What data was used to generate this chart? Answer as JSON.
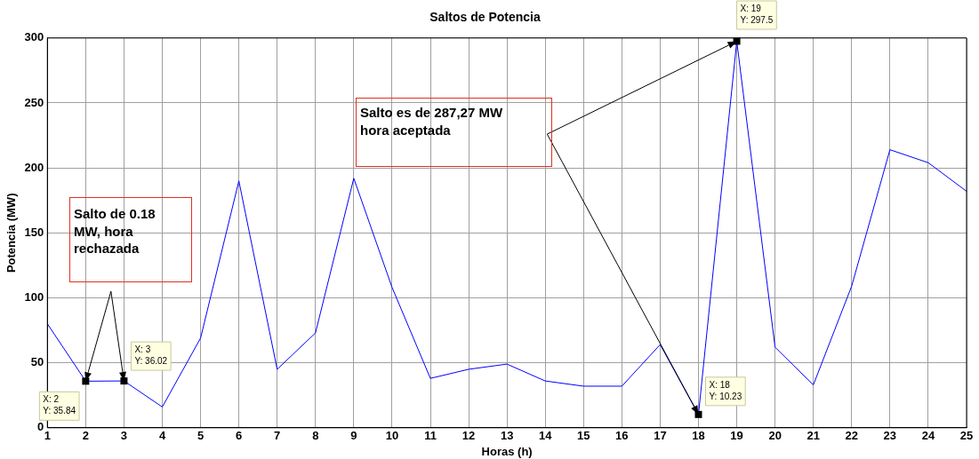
{
  "chart_data": {
    "type": "line",
    "title": "Saltos de Potencia",
    "xlabel": "Horas (h)",
    "ylabel": "Potencia (MW)",
    "x": [
      1,
      2,
      3,
      4,
      5,
      6,
      7,
      8,
      9,
      10,
      11,
      12,
      13,
      14,
      15,
      16,
      17,
      18,
      19,
      20,
      21,
      22,
      23,
      24,
      25
    ],
    "series": [
      {
        "color": "#0000ff",
        "values": [
          80,
          35.84,
          36.02,
          16,
          69,
          190,
          45,
          73,
          192,
          108,
          38,
          45,
          49,
          36,
          32,
          32,
          64,
          10.23,
          297.5,
          62,
          33,
          109,
          214,
          204,
          182
        ]
      }
    ],
    "xlim": [
      1,
      25
    ],
    "xticks": [
      1,
      2,
      3,
      4,
      5,
      6,
      7,
      8,
      9,
      10,
      11,
      12,
      13,
      14,
      15,
      16,
      17,
      18,
      19,
      20,
      21,
      22,
      23,
      24,
      25
    ],
    "ylim": [
      0,
      300
    ],
    "yticks": [
      0,
      50,
      100,
      150,
      200,
      250,
      300
    ],
    "grid": true,
    "legend": false,
    "marker": "none",
    "line_style": "solid",
    "annotations": [
      {
        "text": "X: 2\nY: 35.84",
        "x": 2,
        "y": 35.84
      },
      {
        "text": "X: 3\nY: 36.02",
        "x": 3,
        "y": 36.02
      },
      {
        "text": "X: 18\nY: 10.23",
        "x": 18,
        "y": 10.23
      },
      {
        "text": "X: 19\nY: 297.5",
        "x": 19,
        "y": 297.5
      },
      "Salto de 0.18 MW, hora rechazada",
      "Salto es de 287,27 MW hora aceptada"
    ]
  }
}
